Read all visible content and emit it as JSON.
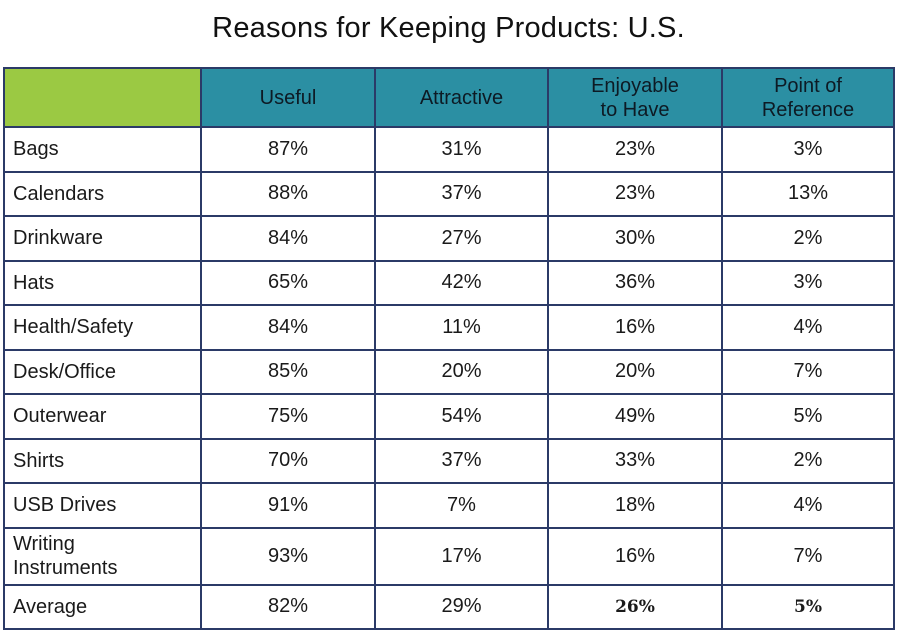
{
  "chart_data": {
    "type": "table",
    "title": "Reasons for Keeping Products: U.S.",
    "columns": [
      {
        "key": "useful",
        "lines": [
          "Useful"
        ]
      },
      {
        "key": "attractive",
        "lines": [
          "Attractive"
        ]
      },
      {
        "key": "enjoyable",
        "lines": [
          "Enjoyable",
          "to Have"
        ]
      },
      {
        "key": "reference",
        "lines": [
          "Point of",
          "Reference"
        ]
      }
    ],
    "rows": [
      {
        "label": [
          "Bags"
        ],
        "values": [
          "87%",
          "31%",
          "23%",
          "3%"
        ]
      },
      {
        "label": [
          "Calendars"
        ],
        "values": [
          "88%",
          "37%",
          "23%",
          "13%"
        ]
      },
      {
        "label": [
          "Drinkware"
        ],
        "values": [
          "84%",
          "27%",
          "30%",
          "2%"
        ]
      },
      {
        "label": [
          "Hats"
        ],
        "values": [
          "65%",
          "42%",
          "36%",
          "3%"
        ]
      },
      {
        "label": [
          "Health/Safety"
        ],
        "values": [
          "84%",
          "11%",
          "16%",
          "4%"
        ]
      },
      {
        "label": [
          "Desk/Office"
        ],
        "values": [
          "85%",
          "20%",
          "20%",
          "7%"
        ]
      },
      {
        "label": [
          "Outerwear"
        ],
        "values": [
          "75%",
          "54%",
          "49%",
          "5%"
        ]
      },
      {
        "label": [
          "Shirts"
        ],
        "values": [
          "70%",
          "37%",
          "33%",
          "2%"
        ]
      },
      {
        "label": [
          "USB Drives"
        ],
        "values": [
          "91%",
          "7%",
          "18%",
          "4%"
        ]
      },
      {
        "label": [
          "Writing",
          "Instruments"
        ],
        "values": [
          "93%",
          "17%",
          "16%",
          "7%"
        ]
      },
      {
        "label": [
          "Average"
        ],
        "values": [
          "82%",
          "29%",
          "26%",
          "5%"
        ],
        "bold": [
          false,
          false,
          true,
          true
        ]
      }
    ]
  },
  "colors": {
    "header_fill": "#2b8fa3",
    "corner_fill": "#9bc943",
    "border": "#2b3a67"
  }
}
